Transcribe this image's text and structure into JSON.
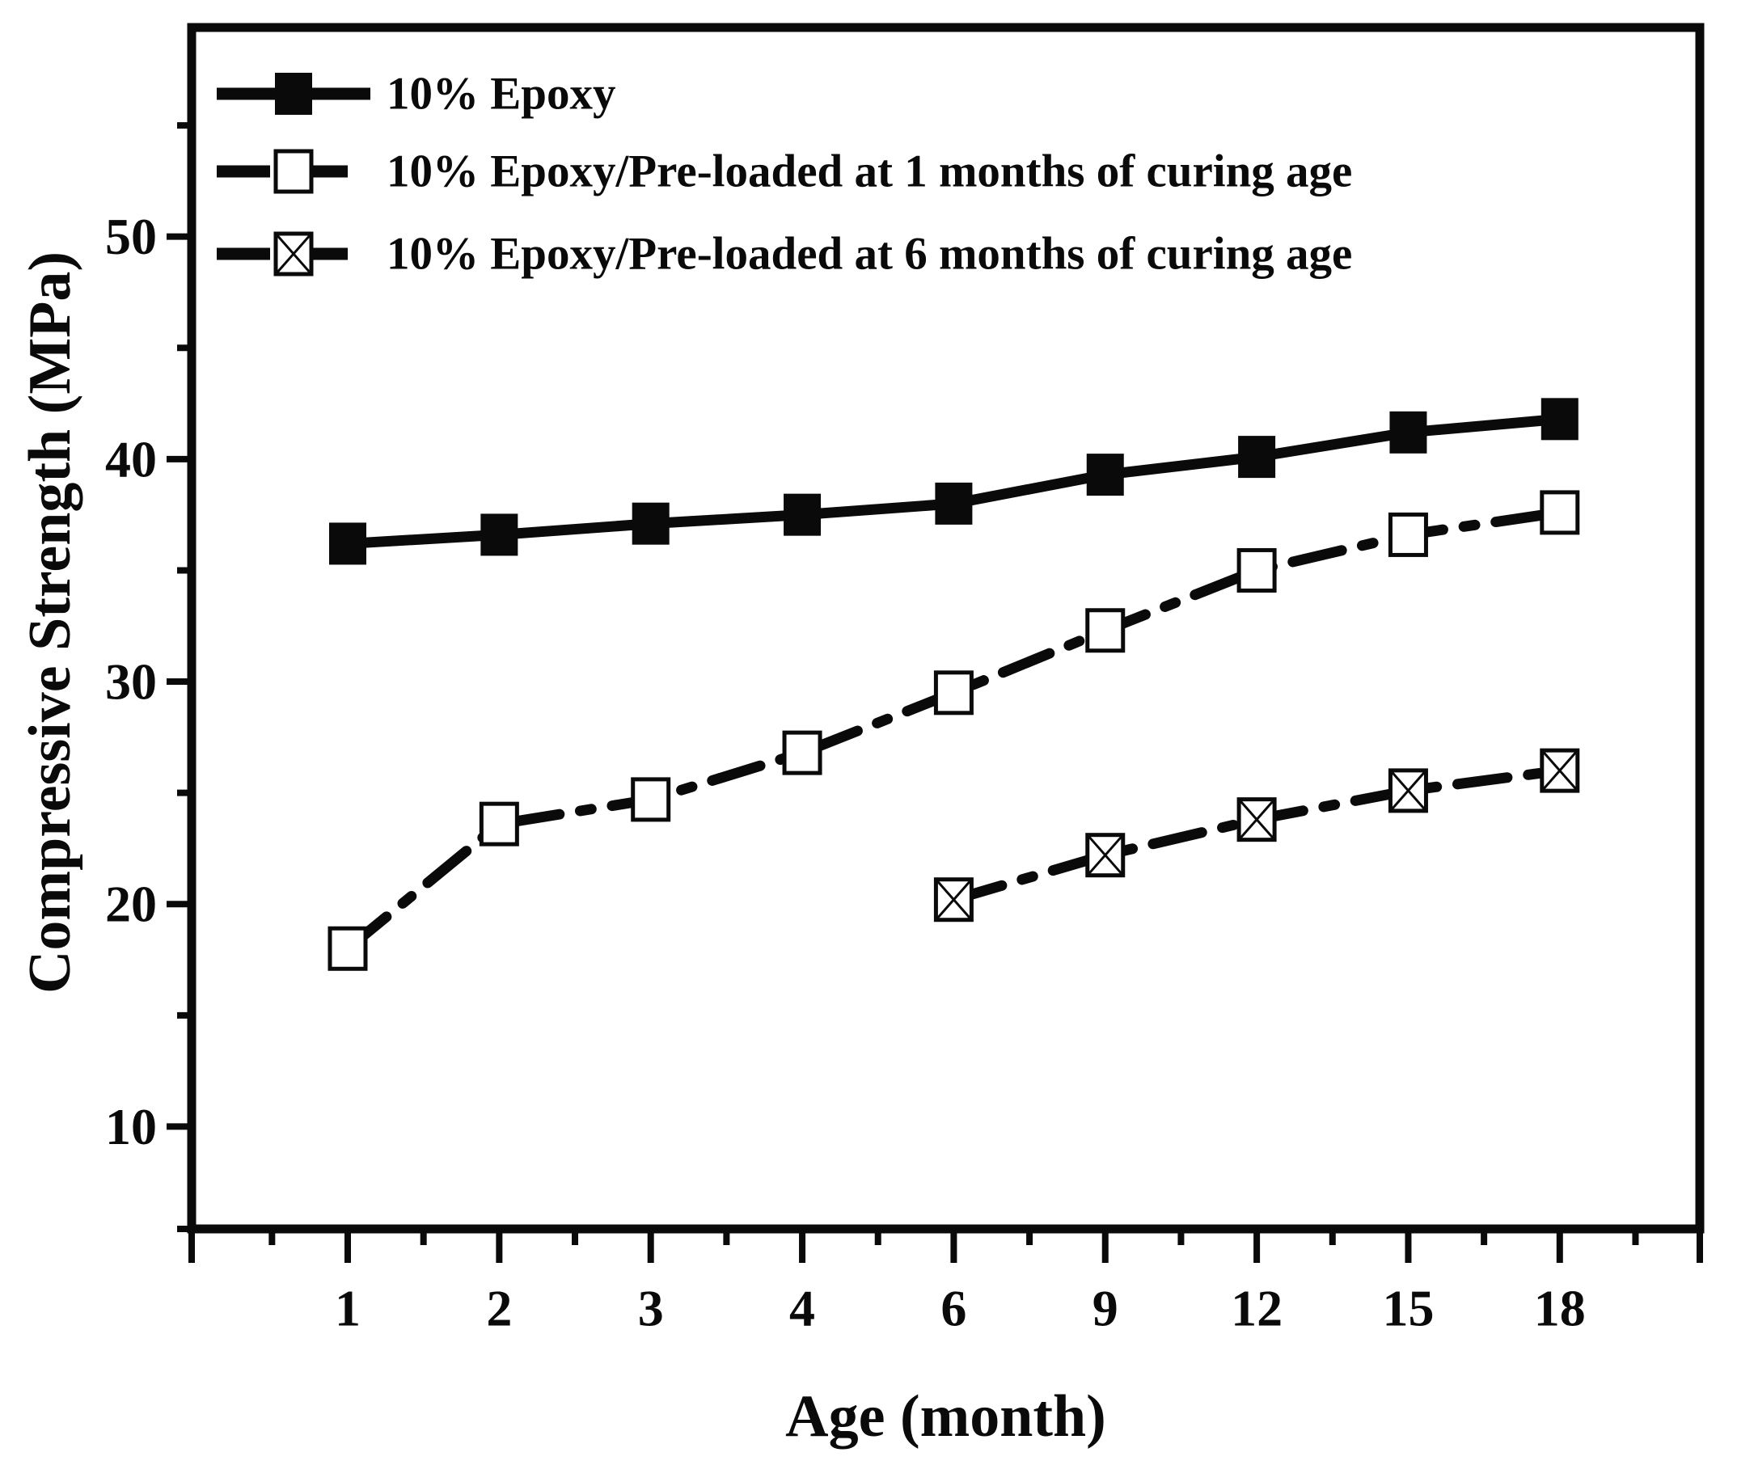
{
  "figure": {
    "background_color": "#ffffff",
    "ink_color": "#0a0a0a"
  },
  "axes": {
    "x": {
      "title": "Age (month)",
      "tick_labels": [
        "1",
        "2",
        "3",
        "4",
        "6",
        "9",
        "12",
        "15",
        "18"
      ]
    },
    "y": {
      "title": "Compressive Strength (MPa)",
      "tick_labels": [
        "10",
        "20",
        "30",
        "40",
        "50"
      ]
    }
  },
  "legend": {
    "position": "top-left",
    "entries": [
      {
        "label": "10% Epoxy",
        "marker": "filled-square",
        "line": "solid"
      },
      {
        "label": "10% Epoxy/Pre-loaded at 1 months of curing age",
        "marker": "open-square",
        "line": "dash-dot"
      },
      {
        "label": "10% Epoxy/Pre-loaded at 6 months of curing age",
        "marker": "crossed-square",
        "line": "dash-dot"
      }
    ]
  },
  "chart_data": {
    "type": "line",
    "categories": [
      1,
      2,
      3,
      4,
      6,
      9,
      12,
      15,
      18
    ],
    "xlabel": "Age (month)",
    "ylabel": "Compressive Strength (MPa)",
    "ylim": [
      5.4,
      59.4
    ],
    "yticks": [
      10,
      20,
      30,
      40,
      50
    ],
    "grid": false,
    "legend_position": "top-left",
    "series": [
      {
        "name": "10% Epoxy",
        "marker": "filled-square",
        "line": "solid",
        "color": "#0a0a0a",
        "values": [
          36.2,
          36.6,
          37.1,
          37.5,
          38.0,
          39.3,
          40.1,
          41.2,
          41.8
        ]
      },
      {
        "name": "10% Epoxy/Pre-loaded at 1 months of curing age",
        "marker": "open-square",
        "line": "dash-dot",
        "color": "#0a0a0a",
        "values": [
          18.0,
          23.6,
          24.7,
          26.8,
          29.5,
          32.3,
          35.0,
          36.6,
          37.6
        ]
      },
      {
        "name": "10% Epoxy/Pre-loaded at 6 months of curing age",
        "marker": "crossed-square",
        "line": "dash-dot",
        "color": "#0a0a0a",
        "values": [
          null,
          null,
          null,
          null,
          20.2,
          22.2,
          23.8,
          25.1,
          26.0
        ]
      }
    ]
  }
}
